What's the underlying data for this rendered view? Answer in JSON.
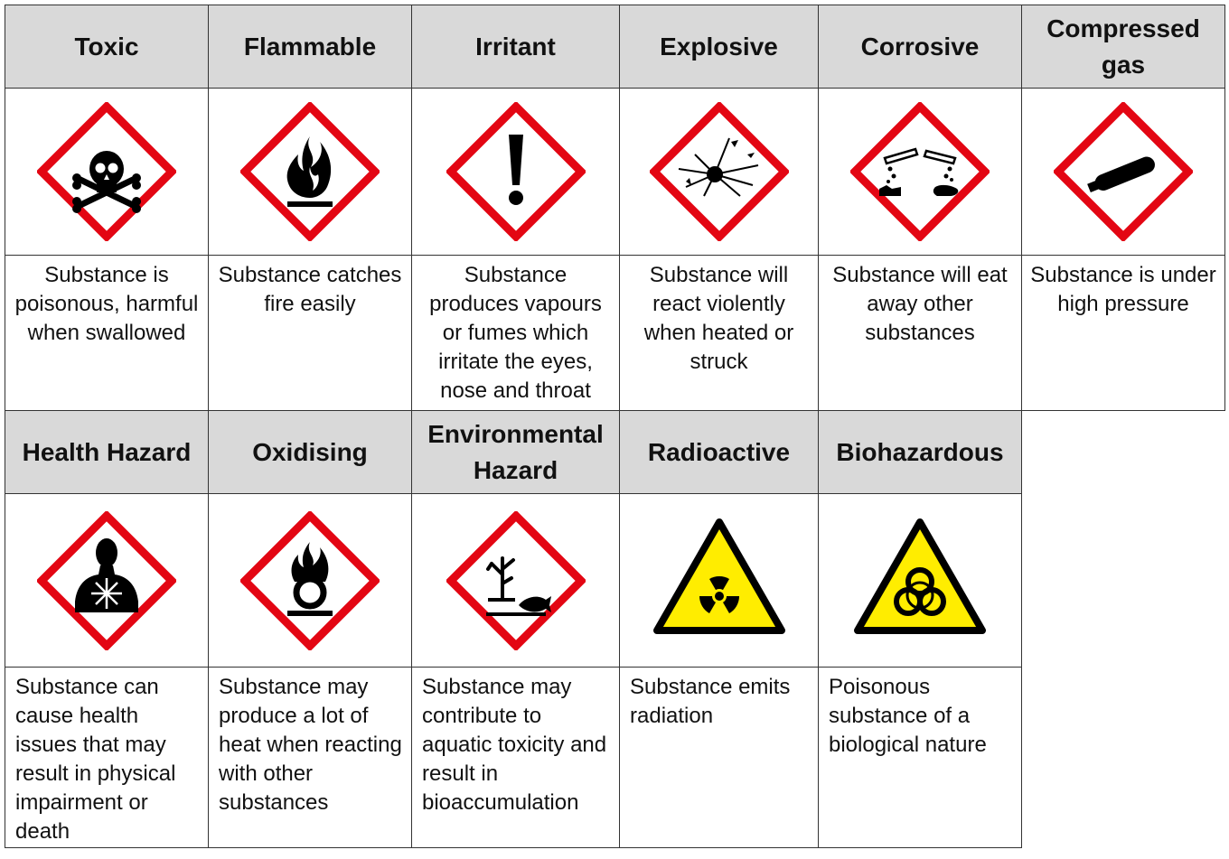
{
  "row1": [
    {
      "title": "Toxic",
      "icon": "skull-crossbones-icon",
      "description": "Substance is poisonous, harmful when swallowed"
    },
    {
      "title": "Flammable",
      "icon": "flame-icon",
      "description": "Substance catches fire easily"
    },
    {
      "title": "Irritant",
      "icon": "exclamation-mark-icon",
      "description": "Substance produces vapours or fumes which irritate the eyes, nose and throat"
    },
    {
      "title": "Explosive",
      "icon": "exploding-bomb-icon",
      "description": "Substance will react violently when heated or struck"
    },
    {
      "title": "Corrosive",
      "icon": "corrosion-icon",
      "description": "Substance will eat away other substances"
    },
    {
      "title": "Compressed gas",
      "icon": "gas-cylinder-icon",
      "description": "Substance is under high pressure"
    }
  ],
  "row2": [
    {
      "title": "Health Hazard",
      "icon": "health-hazard-icon",
      "description": "Substance can cause health issues that may result in physical impairment or death"
    },
    {
      "title": "Oxidising",
      "icon": "flame-over-circle-icon",
      "description": "Substance may produce a lot of heat when reacting with other substances"
    },
    {
      "title": "Environmental Hazard",
      "icon": "environment-icon",
      "description": "Substance may contribute to aquatic toxicity and result in bioaccumulation"
    },
    {
      "title": "Radioactive",
      "icon": "radiation-trefoil-icon",
      "description": "Substance emits radiation"
    },
    {
      "title": "Biohazardous",
      "icon": "biohazard-icon",
      "description": "Poisonous substance of a biological nature"
    }
  ],
  "colors": {
    "ghs_red": "#e30613",
    "warning_yellow": "#ffed00",
    "header_grey": "#d9d9d9"
  }
}
